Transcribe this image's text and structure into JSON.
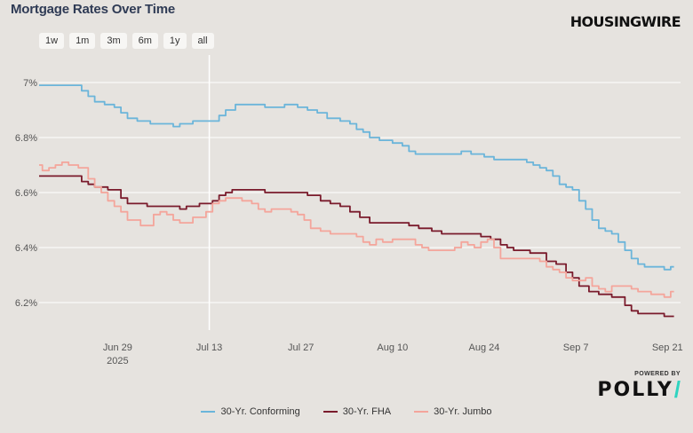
{
  "title": "Mortgage Rates Over Time",
  "brand": "HOUSINGWIRE",
  "range_buttons": [
    "1w",
    "1m",
    "3m",
    "6m",
    "1y",
    "all"
  ],
  "powered_by": "POWERED BY",
  "polly_logo": "POLLY",
  "colors": {
    "conforming": "#6bb5da",
    "fha": "#7a1b2c",
    "jumbo": "#f4a59b",
    "background": "#e6e3df",
    "grid": "#ffffff",
    "crosshair": "#ffffff"
  },
  "chart_data": {
    "type": "line",
    "title": "Mortgage Rates Over Time",
    "xlabel": "",
    "ylabel": "",
    "x_unit": "day index (0 = Jun 17 2025)",
    "xlim": [
      0,
      98
    ],
    "ylim": [
      6.1,
      7.1
    ],
    "y_ticks": [
      {
        "value": 6.2,
        "label": "6.2%"
      },
      {
        "value": 6.4,
        "label": "6.4%"
      },
      {
        "value": 6.6,
        "label": "6.6%"
      },
      {
        "value": 6.8,
        "label": "6.8%"
      },
      {
        "value": 7.0,
        "label": "7%"
      }
    ],
    "x_ticks": [
      {
        "day": 12,
        "label": "Jun 29",
        "sub": "2025"
      },
      {
        "day": 26,
        "label": "Jul 13",
        "sub": ""
      },
      {
        "day": 40,
        "label": "Jul 27",
        "sub": ""
      },
      {
        "day": 54,
        "label": "Aug 10",
        "sub": ""
      },
      {
        "day": 68,
        "label": "Aug 24",
        "sub": ""
      },
      {
        "day": 82,
        "label": "Sep 7",
        "sub": ""
      },
      {
        "day": 96,
        "label": "Sep 21",
        "sub": ""
      }
    ],
    "crosshair_day": 26,
    "legend_position": "bottom-center",
    "series": [
      {
        "name": "30-Yr. Conforming",
        "color": "#6bb5da",
        "points": [
          [
            0,
            6.99
          ],
          [
            6,
            6.99
          ],
          [
            7,
            6.97
          ],
          [
            8,
            6.95
          ],
          [
            9,
            6.93
          ],
          [
            11,
            6.92
          ],
          [
            12,
            6.91
          ],
          [
            13,
            6.89
          ],
          [
            14,
            6.87
          ],
          [
            16,
            6.86
          ],
          [
            18,
            6.85
          ],
          [
            20,
            6.85
          ],
          [
            21,
            6.84
          ],
          [
            22,
            6.85
          ],
          [
            23,
            6.85
          ],
          [
            24,
            6.86
          ],
          [
            27,
            6.86
          ],
          [
            28,
            6.88
          ],
          [
            29,
            6.9
          ],
          [
            31,
            6.92
          ],
          [
            34,
            6.92
          ],
          [
            35,
            6.91
          ],
          [
            37,
            6.91
          ],
          [
            38,
            6.92
          ],
          [
            39,
            6.92
          ],
          [
            40,
            6.91
          ],
          [
            42,
            6.9
          ],
          [
            43,
            6.89
          ],
          [
            45,
            6.87
          ],
          [
            47,
            6.86
          ],
          [
            48,
            6.85
          ],
          [
            49,
            6.83
          ],
          [
            50,
            6.82
          ],
          [
            51,
            6.8
          ],
          [
            53,
            6.79
          ],
          [
            55,
            6.78
          ],
          [
            56,
            6.77
          ],
          [
            57,
            6.75
          ],
          [
            58,
            6.74
          ],
          [
            64,
            6.74
          ],
          [
            65,
            6.75
          ],
          [
            67,
            6.74
          ],
          [
            69,
            6.73
          ],
          [
            70,
            6.72
          ],
          [
            74,
            6.72
          ],
          [
            75,
            6.71
          ],
          [
            76,
            6.7
          ],
          [
            77,
            6.69
          ],
          [
            78,
            6.68
          ],
          [
            79,
            6.66
          ],
          [
            80,
            6.63
          ],
          [
            81,
            6.62
          ],
          [
            82,
            6.61
          ],
          [
            83,
            6.57
          ],
          [
            84,
            6.54
          ],
          [
            85,
            6.5
          ],
          [
            86,
            6.47
          ],
          [
            87,
            6.46
          ],
          [
            88,
            6.45
          ],
          [
            89,
            6.42
          ],
          [
            90,
            6.39
          ],
          [
            91,
            6.36
          ],
          [
            92,
            6.34
          ],
          [
            93,
            6.33
          ],
          [
            95,
            6.33
          ],
          [
            96,
            6.32
          ],
          [
            97,
            6.33
          ]
        ]
      },
      {
        "name": "30-Yr. FHA",
        "color": "#7a1b2c",
        "points": [
          [
            0,
            6.66
          ],
          [
            6,
            6.66
          ],
          [
            7,
            6.64
          ],
          [
            8,
            6.63
          ],
          [
            9,
            6.62
          ],
          [
            12,
            6.61
          ],
          [
            13,
            6.58
          ],
          [
            14,
            6.56
          ],
          [
            16,
            6.56
          ],
          [
            17,
            6.55
          ],
          [
            21,
            6.55
          ],
          [
            22,
            6.54
          ],
          [
            23,
            6.55
          ],
          [
            26,
            6.56
          ],
          [
            27,
            6.57
          ],
          [
            28,
            6.59
          ],
          [
            29,
            6.6
          ],
          [
            30,
            6.61
          ],
          [
            34,
            6.61
          ],
          [
            35,
            6.6
          ],
          [
            40,
            6.6
          ],
          [
            42,
            6.59
          ],
          [
            44,
            6.57
          ],
          [
            45,
            6.56
          ],
          [
            47,
            6.55
          ],
          [
            48,
            6.53
          ],
          [
            50,
            6.51
          ],
          [
            51,
            6.49
          ],
          [
            56,
            6.49
          ],
          [
            57,
            6.48
          ],
          [
            59,
            6.47
          ],
          [
            61,
            6.46
          ],
          [
            62,
            6.45
          ],
          [
            67,
            6.45
          ],
          [
            68,
            6.44
          ],
          [
            70,
            6.43
          ],
          [
            71,
            6.41
          ],
          [
            72,
            6.4
          ],
          [
            73,
            6.39
          ],
          [
            77,
            6.38
          ],
          [
            78,
            6.35
          ],
          [
            80,
            6.34
          ],
          [
            81,
            6.31
          ],
          [
            82,
            6.29
          ],
          [
            83,
            6.26
          ],
          [
            85,
            6.24
          ],
          [
            86,
            6.23
          ],
          [
            89,
            6.22
          ],
          [
            90,
            6.19
          ],
          [
            91,
            6.17
          ],
          [
            92,
            6.16
          ],
          [
            95,
            6.16
          ],
          [
            96,
            6.15
          ],
          [
            97,
            6.15
          ]
        ]
      },
      {
        "name": "30-Yr. Jumbo",
        "color": "#f4a59b",
        "points": [
          [
            0,
            6.7
          ],
          [
            1,
            6.68
          ],
          [
            2,
            6.69
          ],
          [
            3,
            6.7
          ],
          [
            4,
            6.71
          ],
          [
            5,
            6.7
          ],
          [
            7,
            6.69
          ],
          [
            8,
            6.65
          ],
          [
            9,
            6.62
          ],
          [
            10,
            6.6
          ],
          [
            11,
            6.57
          ],
          [
            12,
            6.55
          ],
          [
            13,
            6.53
          ],
          [
            14,
            6.5
          ],
          [
            17,
            6.48
          ],
          [
            18,
            6.52
          ],
          [
            19,
            6.53
          ],
          [
            20,
            6.52
          ],
          [
            21,
            6.5
          ],
          [
            22,
            6.49
          ],
          [
            23,
            6.49
          ],
          [
            24,
            6.51
          ],
          [
            25,
            6.51
          ],
          [
            26,
            6.53
          ],
          [
            27,
            6.56
          ],
          [
            28,
            6.57
          ],
          [
            29,
            6.58
          ],
          [
            30,
            6.58
          ],
          [
            32,
            6.57
          ],
          [
            33,
            6.56
          ],
          [
            34,
            6.54
          ],
          [
            35,
            6.53
          ],
          [
            36,
            6.54
          ],
          [
            38,
            6.54
          ],
          [
            39,
            6.53
          ],
          [
            40,
            6.52
          ],
          [
            41,
            6.5
          ],
          [
            42,
            6.47
          ],
          [
            44,
            6.46
          ],
          [
            45,
            6.45
          ],
          [
            48,
            6.45
          ],
          [
            49,
            6.44
          ],
          [
            50,
            6.42
          ],
          [
            51,
            6.41
          ],
          [
            52,
            6.43
          ],
          [
            53,
            6.42
          ],
          [
            55,
            6.43
          ],
          [
            57,
            6.43
          ],
          [
            58,
            6.41
          ],
          [
            59,
            6.4
          ],
          [
            60,
            6.39
          ],
          [
            63,
            6.39
          ],
          [
            64,
            6.4
          ],
          [
            65,
            6.42
          ],
          [
            66,
            6.41
          ],
          [
            67,
            6.4
          ],
          [
            68,
            6.42
          ],
          [
            69,
            6.43
          ],
          [
            70,
            6.4
          ],
          [
            71,
            6.36
          ],
          [
            76,
            6.36
          ],
          [
            77,
            6.35
          ],
          [
            78,
            6.33
          ],
          [
            79,
            6.32
          ],
          [
            80,
            6.31
          ],
          [
            81,
            6.29
          ],
          [
            82,
            6.28
          ],
          [
            83,
            6.28
          ],
          [
            84,
            6.29
          ],
          [
            85,
            6.26
          ],
          [
            86,
            6.25
          ],
          [
            87,
            6.24
          ],
          [
            88,
            6.26
          ],
          [
            90,
            6.26
          ],
          [
            91,
            6.25
          ],
          [
            92,
            6.24
          ],
          [
            95,
            6.23
          ],
          [
            96,
            6.22
          ],
          [
            97,
            6.24
          ]
        ]
      }
    ]
  }
}
